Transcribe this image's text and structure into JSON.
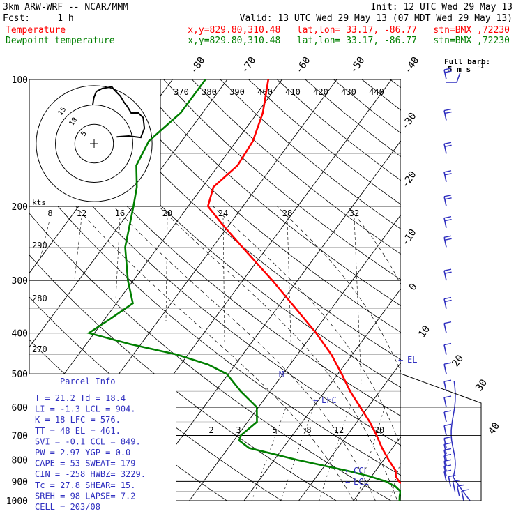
{
  "header": {
    "model": "3km ARW-WRF -- NCAR/MMM",
    "init": "Init: 12 UTC Wed 29 May 13",
    "fcst": "Fcst:     1 h",
    "valid": "Valid: 13 UTC Wed 29 May 13 (07 MDT Wed 29 May 13)",
    "temp_label": "Temperature",
    "temp_info": "x,y=829.80,310.48   lat,lon= 33.17, -86.77   stn=BMX ,72230",
    "dew_label": "Dewpoint temperature",
    "dew_info": "x,y=829.80,310.48   lat,lon= 33.17, -86.77   stn=BMX ,72230",
    "barb_title": "Full barb:",
    "barb_units": "5 m s"
  },
  "colors": {
    "temperature": "#ff0000",
    "dewpoint": "#007f00",
    "wind": "#3030c0",
    "hodograph": "#000000",
    "parcel": "#000000"
  },
  "chart_data": {
    "type": "skew-t log-p sounding",
    "pressure_levels": [
      100,
      200,
      300,
      400,
      500,
      600,
      700,
      800,
      900,
      1000
    ],
    "pressure_labels": [
      "100",
      "200",
      "300",
      "400",
      "500",
      "600",
      "700",
      "800",
      "900",
      "1000"
    ],
    "pressure_range": [
      100,
      1000
    ],
    "temp_tick_labels": [
      "-80",
      "-70",
      "-60",
      "-50",
      "-40",
      "-30",
      "-20",
      "-10",
      "0",
      "10",
      "20",
      "30",
      "40"
    ],
    "theta_labels": [
      "370",
      "380",
      "390",
      "400",
      "410",
      "420",
      "430",
      "440"
    ],
    "mixratio_labels": [
      "2",
      "3",
      "5",
      "8",
      "12",
      "20"
    ],
    "wind_speed_axis_labels": [
      "8",
      "12",
      "16",
      "20",
      "24",
      "28",
      "32"
    ],
    "theta_side_labels": [
      "290",
      "280",
      "270"
    ],
    "kts_label": "kts",
    "temperature": {
      "name": "Temperature",
      "p": [
        1000,
        975,
        950,
        925,
        900,
        875,
        850,
        800,
        750,
        700,
        650,
        600,
        550,
        500,
        450,
        400,
        350,
        300,
        250,
        220,
        200,
        180,
        160,
        140,
        120,
        100
      ],
      "t": [
        21.2,
        20.5,
        19.6,
        17.6,
        15.7,
        14.4,
        13.7,
        10.9,
        8.1,
        5.4,
        2.3,
        -1.4,
        -5.4,
        -9.3,
        -13.8,
        -19.5,
        -26.5,
        -34.6,
        -44.6,
        -51.5,
        -56.4,
        -58.0,
        -56.5,
        -57.0,
        -59.0,
        -62.5
      ]
    },
    "dewpoint": {
      "name": "Dewpoint temperature",
      "p": [
        1000,
        975,
        950,
        925,
        900,
        875,
        850,
        800,
        750,
        720,
        700,
        650,
        600,
        550,
        500,
        475,
        450,
        425,
        400,
        370,
        340,
        300,
        250,
        200,
        180,
        160,
        140,
        120,
        100
      ],
      "td": [
        18.4,
        17.8,
        17.3,
        15.7,
        13.3,
        9.6,
        5.0,
        -5.8,
        -16.2,
        -19.0,
        -19.4,
        -18.3,
        -20.3,
        -25.4,
        -30.3,
        -35.0,
        -42.0,
        -52.0,
        -61.0,
        -59.0,
        -57.0,
        -61.0,
        -66.0,
        -70.0,
        -72.0,
        -75.0,
        -76.0,
        -74.0,
        -74.0
      ]
    },
    "wind_barbs_p": [
      1000,
      975,
      950,
      925,
      900,
      875,
      850,
      825,
      800,
      775,
      750,
      700,
      650,
      600,
      550,
      500,
      450,
      400,
      350,
      300,
      250,
      225,
      200,
      175,
      150,
      125,
      100
    ],
    "hodograph": {
      "ring_labels": [
        "5",
        "10",
        "15"
      ],
      "u": [
        -8.0,
        -3.0,
        2.0,
        3.5,
        3.0,
        1.0,
        -2.0,
        -3.5,
        -5.0,
        -6.5,
        -9.0,
        -10.0,
        -14.0,
        -16.5,
        -17.5,
        -18.0
      ],
      "v": [
        2.2,
        2.5,
        2.0,
        5.0,
        8.5,
        10.0,
        10.0,
        12.0,
        13.5,
        15.5,
        17.5,
        18.5,
        18.0,
        17.0,
        15.0,
        12.5
      ]
    },
    "annotations": {
      "el": "EL",
      "lfc": "LFC",
      "ccl": "CCL",
      "lcl": "LCL",
      "m": "M"
    }
  },
  "parcel": {
    "title": "Parcel Info",
    "rows": [
      "T   =   21.2  Td  =  18.4",
      "LI  =   -1.3  LCL =  904.",
      "K   =     18  LFC =  576.",
      "TT  =     48  EL  =  461.",
      "SVI =   -0.1  CCL =  849.",
      "PW  =   2.97  YGP =   0.0",
      "CAPE =    53  SWEAT=  179",
      "CIN  =  -258  HWBZ= 3229.",
      "Tc   =  27.8  SHEAR=  15.",
      "SREH =    98  LAPSE=  7.2",
      "CELL = 203/08"
    ]
  }
}
